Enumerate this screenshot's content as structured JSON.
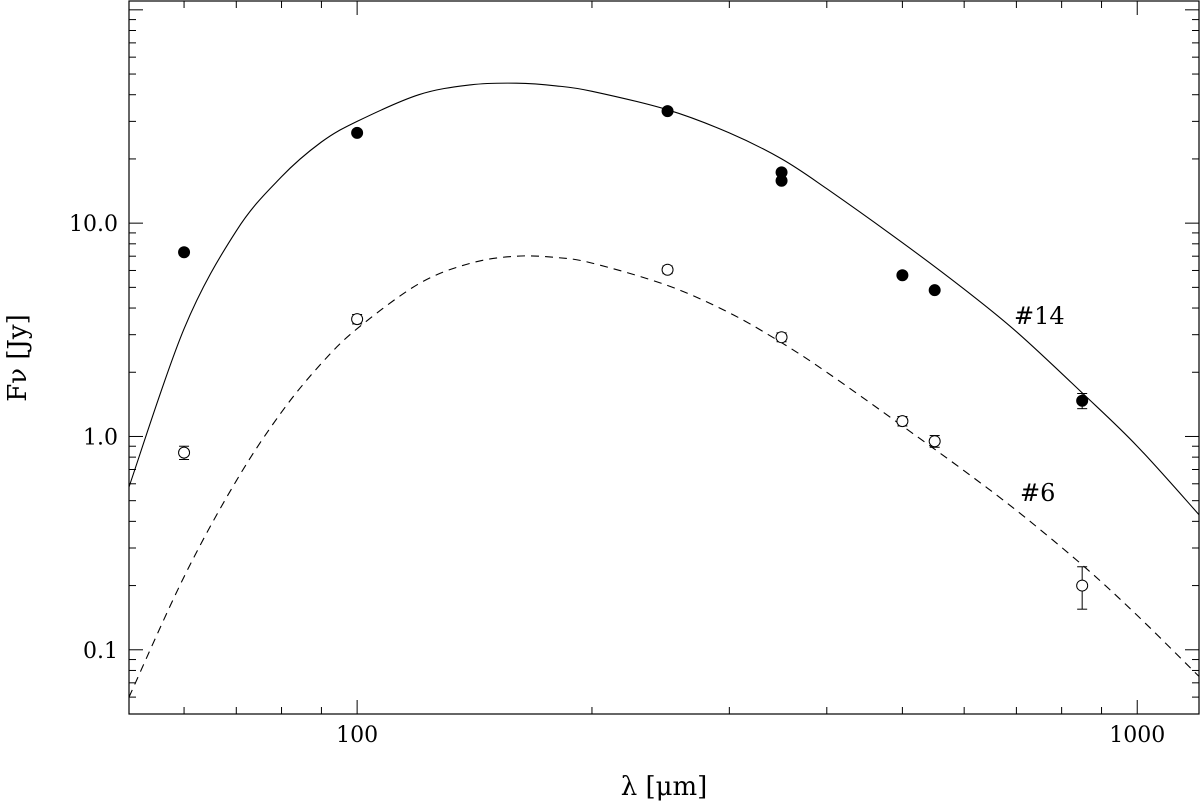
{
  "chart_data": {
    "type": "scatter",
    "xscale": "log",
    "yscale": "log",
    "xlim": [
      51,
      1200
    ],
    "ylim": [
      0.05,
      110
    ],
    "xlabel": "λ [μm]",
    "ylabel": "Fν [Jy]",
    "xticks": [
      100,
      1000
    ],
    "xtick_labels": [
      "100",
      "1000"
    ],
    "yticks": [
      0.1,
      1.0,
      10.0
    ],
    "ytick_labels": [
      "0.1",
      "1.0",
      "10.0"
    ],
    "grid": false,
    "series": [
      {
        "name": "#14",
        "marker": "filled-circle",
        "line_style": "solid",
        "points": [
          {
            "x": 60,
            "y": 7.3
          },
          {
            "x": 100,
            "y": 26.5
          },
          {
            "x": 250,
            "y": 33.5
          },
          {
            "x": 350,
            "y": 17.3
          },
          {
            "x": 350,
            "y": 15.8
          },
          {
            "x": 500,
            "y": 5.7
          },
          {
            "x": 550,
            "y": 4.85
          },
          {
            "x": 850,
            "y": 1.47
          }
        ],
        "errors": [
          0,
          0,
          0,
          0,
          0,
          0,
          0,
          0.12
        ],
        "model_curve": [
          {
            "x": 51,
            "y": 0.58
          },
          {
            "x": 60,
            "y": 3.2
          },
          {
            "x": 70,
            "y": 9.2
          },
          {
            "x": 80,
            "y": 16.5
          },
          {
            "x": 90,
            "y": 24
          },
          {
            "x": 100,
            "y": 30
          },
          {
            "x": 120,
            "y": 40
          },
          {
            "x": 140,
            "y": 44.5
          },
          {
            "x": 160,
            "y": 45.3
          },
          {
            "x": 180,
            "y": 44
          },
          {
            "x": 200,
            "y": 41.5
          },
          {
            "x": 250,
            "y": 34
          },
          {
            "x": 300,
            "y": 26.5
          },
          {
            "x": 350,
            "y": 20
          },
          {
            "x": 400,
            "y": 14.5
          },
          {
            "x": 500,
            "y": 8.1
          },
          {
            "x": 600,
            "y": 4.9
          },
          {
            "x": 700,
            "y": 3.1
          },
          {
            "x": 850,
            "y": 1.6
          },
          {
            "x": 1000,
            "y": 0.9
          },
          {
            "x": 1200,
            "y": 0.43
          }
        ]
      },
      {
        "name": "#6",
        "marker": "open-circle",
        "line_style": "dashed",
        "points": [
          {
            "x": 60,
            "y": 0.84
          },
          {
            "x": 100,
            "y": 3.55
          },
          {
            "x": 250,
            "y": 6.05
          },
          {
            "x": 350,
            "y": 2.92
          },
          {
            "x": 500,
            "y": 1.18
          },
          {
            "x": 550,
            "y": 0.95
          },
          {
            "x": 850,
            "y": 0.2
          }
        ],
        "errors": [
          0.06,
          0.18,
          0.25,
          0.14,
          0.06,
          0.06,
          0.045
        ],
        "model_curve": [
          {
            "x": 51,
            "y": 0.06
          },
          {
            "x": 60,
            "y": 0.22
          },
          {
            "x": 70,
            "y": 0.62
          },
          {
            "x": 80,
            "y": 1.3
          },
          {
            "x": 90,
            "y": 2.2
          },
          {
            "x": 100,
            "y": 3.2
          },
          {
            "x": 120,
            "y": 5.2
          },
          {
            "x": 140,
            "y": 6.5
          },
          {
            "x": 160,
            "y": 7.0
          },
          {
            "x": 180,
            "y": 6.9
          },
          {
            "x": 200,
            "y": 6.5
          },
          {
            "x": 250,
            "y": 5.1
          },
          {
            "x": 300,
            "y": 3.8
          },
          {
            "x": 350,
            "y": 2.75
          },
          {
            "x": 400,
            "y": 2.0
          },
          {
            "x": 500,
            "y": 1.12
          },
          {
            "x": 600,
            "y": 0.69
          },
          {
            "x": 700,
            "y": 0.45
          },
          {
            "x": 850,
            "y": 0.25
          },
          {
            "x": 1000,
            "y": 0.145
          },
          {
            "x": 1200,
            "y": 0.075
          }
        ]
      }
    ]
  }
}
